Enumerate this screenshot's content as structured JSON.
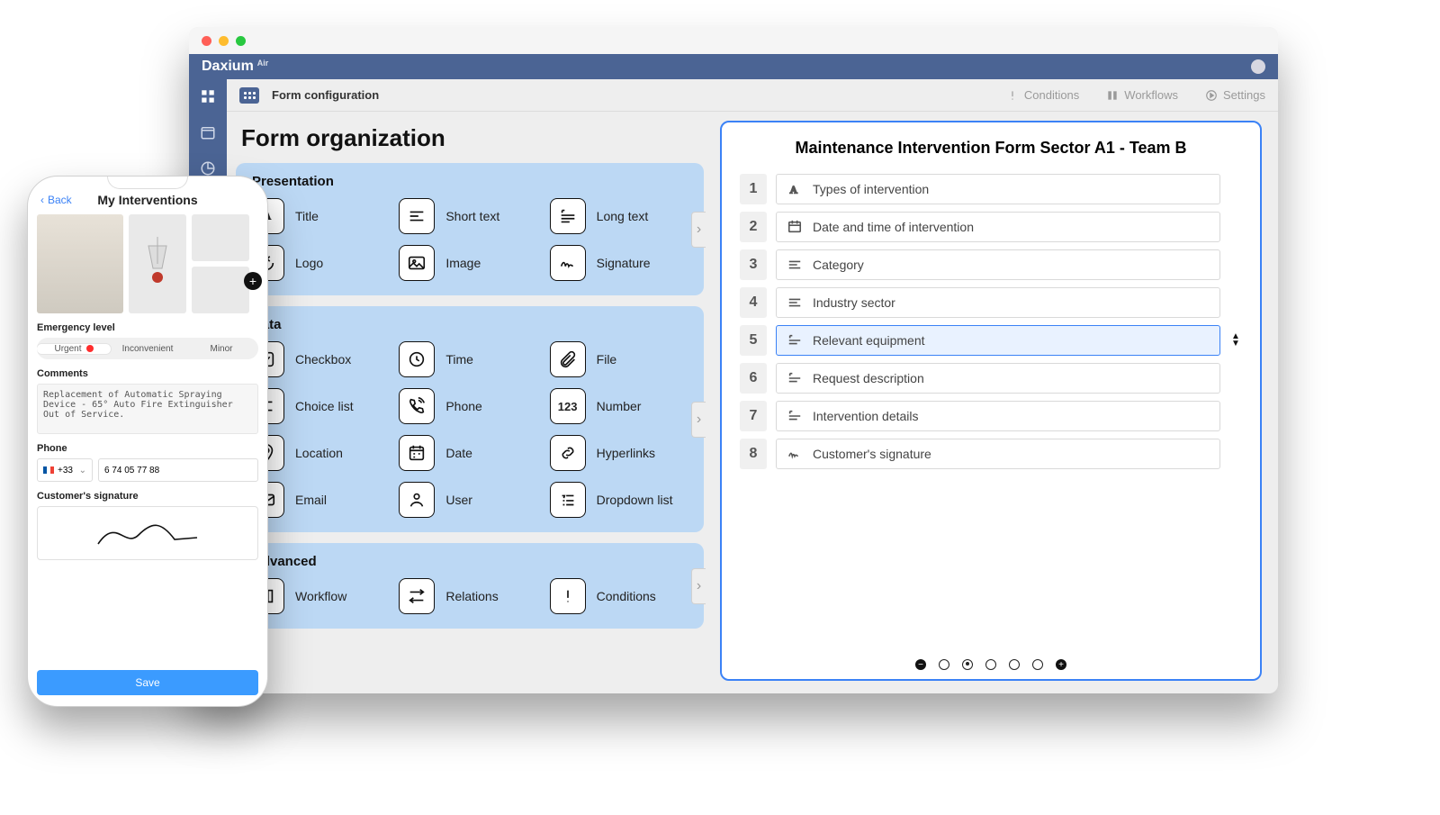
{
  "browser": {
    "brand": "Daxium",
    "brandSuffix": "Air",
    "crumb": "Form configuration",
    "nav": {
      "conditions": "Conditions",
      "workflows": "Workflows",
      "settings": "Settings"
    }
  },
  "page": {
    "title": "Form organization",
    "panels": {
      "presentation": {
        "title": "Presentation",
        "items": {
          "title": "Title",
          "short": "Short text",
          "long": "Long text",
          "logo": "Logo",
          "image": "Image",
          "signature": "Signature"
        }
      },
      "data": {
        "title": "Data",
        "items": {
          "checkbox": "Checkbox",
          "time": "Time",
          "file": "File",
          "choice": "Choice list",
          "phone": "Phone",
          "number": "Number",
          "location": "Location",
          "date": "Date",
          "hyperlinks": "Hyperlinks",
          "email": "Email",
          "user": "User",
          "dropdown": "Dropdown list"
        }
      },
      "advanced": {
        "title": "Advanced",
        "items": {
          "workflow": "Workflow",
          "relations": "Relations",
          "conditions": "Conditions"
        }
      }
    }
  },
  "form": {
    "title": "Maintenance Intervention Form Sector A1 - Team B",
    "rows": [
      {
        "n": "1",
        "label": "Types of intervention"
      },
      {
        "n": "2",
        "label": "Date and time of intervention"
      },
      {
        "n": "3",
        "label": "Category"
      },
      {
        "n": "4",
        "label": "Industry sector"
      },
      {
        "n": "5",
        "label": "Relevant equipment"
      },
      {
        "n": "6",
        "label": "Request description"
      },
      {
        "n": "7",
        "label": "Intervention details"
      },
      {
        "n": "8",
        "label": "Customer's signature"
      }
    ],
    "activeIndex": 4
  },
  "phone": {
    "back": "Back",
    "title": "My Interventions",
    "labels": {
      "emergency": "Emergency level",
      "comments": "Comments",
      "phone": "Phone",
      "signature": "Customer's signature"
    },
    "segments": {
      "urgent": "Urgent",
      "inconvenient": "Inconvenient",
      "minor": "Minor"
    },
    "comment": "Replacement of Automatic Spraying Device - 65° Auto Fire Extinguisher Out of Service.",
    "cc": "+33",
    "number": "6 74 05 77 88",
    "save": "Save"
  },
  "theme": {
    "primary": "#4b6494",
    "accent": "#3b82f6",
    "panel": "#bcd8f4"
  }
}
